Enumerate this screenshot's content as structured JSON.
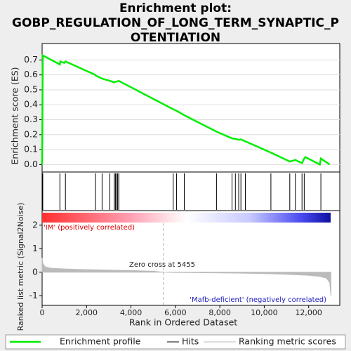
{
  "chart_data": {
    "type": "gsea",
    "title": [
      "Enrichment plot:",
      "GOBP_REGULATION_OF_LONG_TERM_SYNAPTIC_P",
      "OTENTIATION"
    ],
    "es_ylabel": "Enrichment score (ES)",
    "metric_ylabel": "Ranked list metric (Signal2Noise)",
    "xlabel": "Rank in Ordered Dataset",
    "xlim": [
      0,
      13400
    ],
    "xticks": [
      0,
      {
        "value": 2000,
        "label": "2,000"
      },
      {
        "value": 4000,
        "label": "4,000"
      },
      {
        "value": 6000,
        "label": "6,000"
      },
      {
        "value": 8000,
        "label": "8,000"
      },
      {
        "value": 10000,
        "label": "10,000"
      },
      {
        "value": 12000,
        "label": "12,000"
      }
    ],
    "ylim": [
      -0.05,
      0.81
    ],
    "yticks": [
      {
        "value": 0,
        "label": "0.0"
      },
      0.1,
      0.2,
      0.3,
      0.4,
      0.5,
      0.6,
      0.7
    ],
    "y2lim": [
      -1.41,
      2.62
    ],
    "y2ticks": [
      -1,
      0,
      1,
      2
    ],
    "series": [
      {
        "name": "Enrichment profile",
        "color": "#00ee00",
        "x": [
          0,
          30,
          800,
          820,
          1000,
          1050,
          2400,
          2420,
          2700,
          3050,
          3250,
          3300,
          3350,
          3450,
          5900,
          6050,
          6400,
          7850,
          8550,
          8700,
          8850,
          8950,
          9150,
          10300,
          11150,
          11400,
          11700,
          11800,
          11850,
          12500,
          12550,
          12950
        ],
        "values": [
          0,
          0.73,
          0.67,
          0.69,
          0.68,
          0.69,
          0.6,
          0.595,
          0.575,
          0.56,
          0.55,
          0.555,
          0.555,
          0.56,
          0.37,
          0.36,
          0.33,
          0.22,
          0.175,
          0.172,
          0.165,
          0.168,
          0.155,
          0.08,
          0.02,
          0.03,
          0.01,
          0.04,
          0.05,
          0.0,
          0.04,
          0.0
        ]
      },
      {
        "name": "Hits",
        "color": "#000000",
        "values": [
          0,
          30,
          800,
          1050,
          2400,
          2700,
          3050,
          3250,
          3300,
          3350,
          3400,
          3450,
          5900,
          6050,
          6400,
          7850,
          8550,
          8700,
          8850,
          8950,
          9150,
          10300,
          11150,
          11400,
          11700,
          11800,
          12550
        ]
      },
      {
        "name": "Ranking metric scores",
        "color": "#bbbbbb",
        "axis": "y2",
        "x": [
          0,
          40,
          150,
          400,
          1000,
          2000,
          3000,
          4000,
          5000,
          5455,
          6000,
          7000,
          8000,
          9000,
          10000,
          11000,
          12000,
          12500,
          12800,
          12950,
          13000
        ],
        "values": [
          0.6,
          0.35,
          0.22,
          0.17,
          0.14,
          0.11,
          0.09,
          0.07,
          0.04,
          0,
          -0.01,
          -0.02,
          -0.03,
          -0.04,
          -0.06,
          -0.09,
          -0.13,
          -0.18,
          -0.25,
          -0.45,
          -1.0
        ]
      }
    ],
    "pos_label": "'IM' (positively correlated)",
    "neg_label": "'Mafb-deficient' (negatively correlated)",
    "zero_cross": 5455,
    "zero_cross_label": "Zero cross at 5455"
  }
}
